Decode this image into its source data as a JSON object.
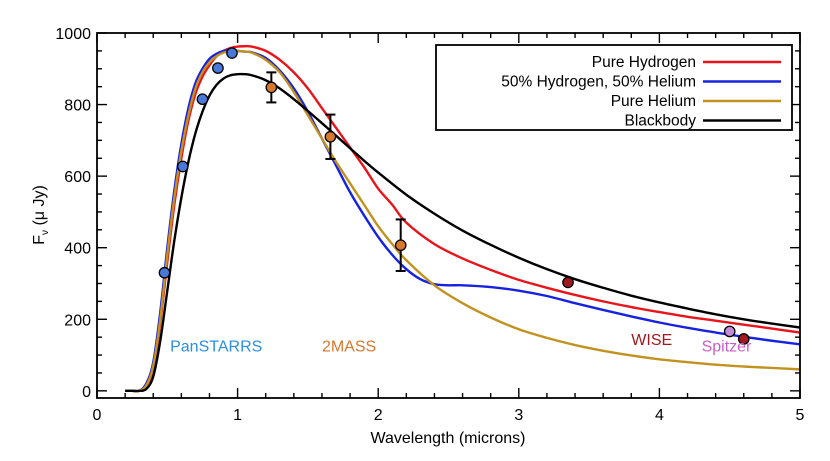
{
  "chart_data": {
    "type": "line",
    "xlabel": "Wavelength (microns)",
    "ylabel": "F",
    "ylabel_sub": "ν",
    "ylabel_rest": " (μ Jy)",
    "xlim": [
      0,
      5
    ],
    "ylim": [
      -20,
      1000
    ],
    "xticks": [
      "0",
      "1",
      "2",
      "3",
      "4",
      "5"
    ],
    "yticks": [
      "0",
      "200",
      "400",
      "600",
      "800",
      "1000"
    ],
    "grid": false,
    "legend_placement": "top-right",
    "series": [
      {
        "name": "Pure Hydrogen",
        "color": "#e8141c",
        "x": [
          0.2,
          0.25,
          0.3,
          0.35,
          0.4,
          0.45,
          0.5,
          0.55,
          0.6,
          0.65,
          0.7,
          0.75,
          0.8,
          0.85,
          0.9,
          0.95,
          1.0,
          1.05,
          1.1,
          1.2,
          1.3,
          1.4,
          1.5,
          1.6,
          1.7,
          1.8,
          1.9,
          2.0,
          2.1,
          2.2,
          2.4,
          2.6,
          2.8,
          3.0,
          3.2,
          3.4,
          3.6,
          3.8,
          4.0,
          4.2,
          4.4,
          4.6,
          4.8,
          5.0
        ],
        "y": [
          0,
          0,
          0,
          15,
          60,
          190,
          360,
          520,
          650,
          755,
          830,
          878,
          910,
          935,
          950,
          958,
          962,
          963,
          962,
          950,
          925,
          890,
          845,
          790,
          735,
          680,
          625,
          565,
          520,
          470,
          410,
          370,
          338,
          310,
          288,
          268,
          250,
          234,
          220,
          207,
          196,
          185,
          174,
          163
        ]
      },
      {
        "name": "50% Hydrogen, 50% Helium",
        "color": "#1622e0",
        "x": [
          0.2,
          0.25,
          0.3,
          0.35,
          0.4,
          0.45,
          0.5,
          0.55,
          0.6,
          0.65,
          0.7,
          0.75,
          0.8,
          0.85,
          0.9,
          0.95,
          1.0,
          1.05,
          1.1,
          1.2,
          1.3,
          1.4,
          1.5,
          1.6,
          1.7,
          1.8,
          1.9,
          2.0,
          2.1,
          2.2,
          2.3,
          2.4,
          2.5,
          2.6,
          2.8,
          3.0,
          3.2,
          3.4,
          3.6,
          3.8,
          4.0,
          4.2,
          4.4,
          4.6,
          4.8,
          5.0
        ],
        "y": [
          0,
          0,
          0,
          20,
          80,
          220,
          400,
          560,
          690,
          790,
          860,
          900,
          928,
          942,
          950,
          952,
          950,
          948,
          946,
          930,
          895,
          845,
          780,
          705,
          630,
          555,
          490,
          430,
          380,
          340,
          312,
          298,
          295,
          295,
          290,
          280,
          265,
          245,
          226,
          208,
          191,
          176,
          163,
          151,
          140,
          130
        ]
      },
      {
        "name": "Pure Helium",
        "color": "#c19220",
        "x": [
          0.2,
          0.25,
          0.3,
          0.35,
          0.4,
          0.45,
          0.5,
          0.55,
          0.6,
          0.65,
          0.7,
          0.75,
          0.8,
          0.85,
          0.9,
          0.95,
          1.0,
          1.05,
          1.1,
          1.2,
          1.3,
          1.4,
          1.5,
          1.6,
          1.7,
          1.8,
          1.9,
          2.0,
          2.1,
          2.2,
          2.4,
          2.6,
          2.8,
          3.0,
          3.2,
          3.4,
          3.6,
          3.8,
          4.0,
          4.2,
          4.4,
          4.6,
          4.8,
          5.0
        ],
        "y": [
          0,
          0,
          0,
          15,
          70,
          200,
          380,
          540,
          670,
          770,
          845,
          890,
          918,
          935,
          945,
          950,
          950,
          948,
          945,
          925,
          890,
          835,
          770,
          705,
          640,
          580,
          520,
          460,
          410,
          365,
          295,
          245,
          205,
          172,
          148,
          128,
          112,
          99,
          88,
          80,
          73,
          68,
          64,
          60
        ]
      },
      {
        "name": "Blackbody",
        "color": "#000000",
        "x": [
          0.2,
          0.25,
          0.3,
          0.35,
          0.4,
          0.45,
          0.5,
          0.55,
          0.6,
          0.65,
          0.7,
          0.75,
          0.8,
          0.85,
          0.9,
          0.95,
          1.0,
          1.05,
          1.1,
          1.2,
          1.3,
          1.4,
          1.5,
          1.6,
          1.7,
          1.8,
          1.9,
          2.0,
          2.2,
          2.4,
          2.6,
          2.8,
          3.0,
          3.2,
          3.4,
          3.6,
          3.8,
          4.0,
          4.2,
          4.4,
          4.6,
          4.8,
          5.0
        ],
        "y": [
          0,
          0,
          0,
          5,
          40,
          140,
          280,
          420,
          540,
          640,
          720,
          780,
          825,
          855,
          873,
          882,
          885,
          885,
          882,
          868,
          845,
          815,
          782,
          748,
          713,
          678,
          643,
          610,
          548,
          495,
          448,
          408,
          372,
          340,
          312,
          288,
          266,
          247,
          230,
          214,
          200,
          188,
          177
        ]
      }
    ],
    "photometry": [
      {
        "survey": "PanSTARRS",
        "color": "#4a78d8",
        "points": [
          {
            "x": 0.48,
            "y": 330
          },
          {
            "x": 0.61,
            "y": 627
          },
          {
            "x": 0.75,
            "y": 815
          },
          {
            "x": 0.86,
            "y": 902
          },
          {
            "x": 0.96,
            "y": 944
          }
        ]
      },
      {
        "survey": "2MASS",
        "color": "#d6782e",
        "points": [
          {
            "x": 1.24,
            "y": 848,
            "err": 42
          },
          {
            "x": 1.66,
            "y": 710,
            "err": 62
          },
          {
            "x": 2.16,
            "y": 407,
            "err": 72
          }
        ]
      },
      {
        "survey": "WISE",
        "color": "#a0191e",
        "points": [
          {
            "x": 3.35,
            "y": 303
          },
          {
            "x": 4.6,
            "y": 145
          }
        ]
      },
      {
        "survey": "Spitzer",
        "color": "#c58ad8",
        "points": [
          {
            "x": 4.5,
            "y": 166
          }
        ]
      }
    ],
    "annotations": [
      {
        "text": "PanSTARRS",
        "color": "#2a8fe0",
        "x": 0.52,
        "y": 110
      },
      {
        "text": "2MASS",
        "color": "#d6782e",
        "x": 1.6,
        "y": 110
      },
      {
        "text": "WISE",
        "color": "#a0191e",
        "x": 3.8,
        "y": 128
      },
      {
        "text": "Spitzer",
        "color": "#c85ec8",
        "x": 4.3,
        "y": 110
      }
    ]
  }
}
